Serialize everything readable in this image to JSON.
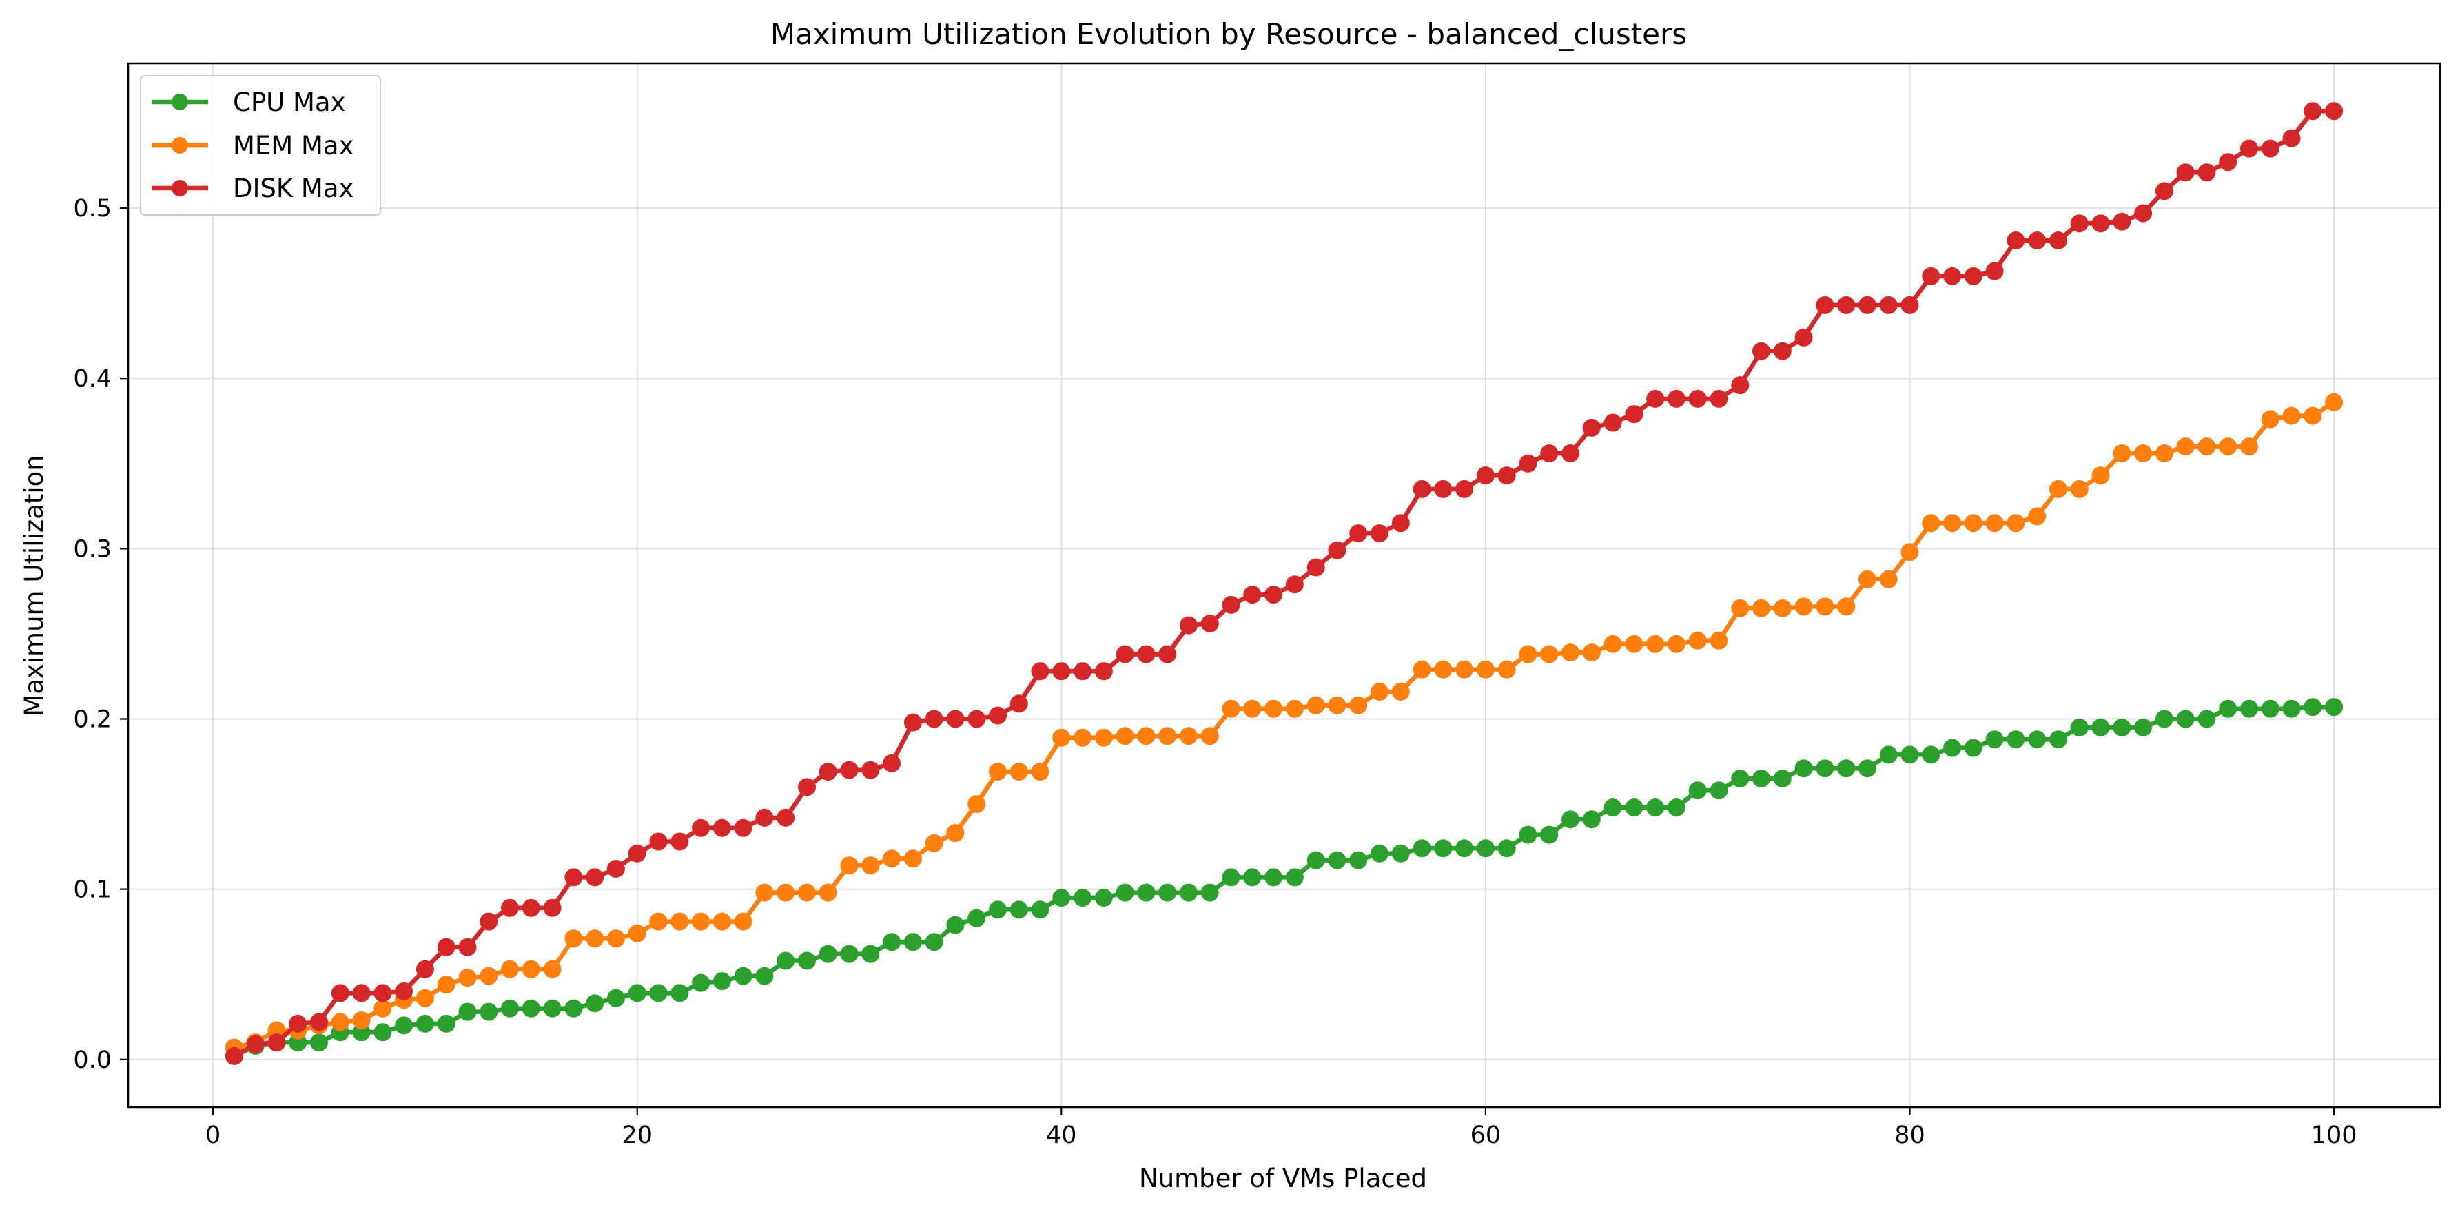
{
  "chart_data": {
    "type": "line",
    "title": "Maximum Utilization Evolution by Resource - balanced_clusters",
    "xlabel": "Number of VMs Placed",
    "ylabel": "Maximum Utilization",
    "xlim": [
      -4,
      105
    ],
    "ylim": [
      -0.028,
      0.585
    ],
    "xticks": [
      0,
      20,
      40,
      60,
      80,
      100
    ],
    "yticks": [
      0.0,
      0.1,
      0.2,
      0.3,
      0.4,
      0.5
    ],
    "xtick_labels": [
      "0",
      "20",
      "40",
      "60",
      "80",
      "100"
    ],
    "ytick_labels": [
      "0.0",
      "0.1",
      "0.2",
      "0.3",
      "0.4",
      "0.5"
    ],
    "grid": true,
    "legend_position": "top-left",
    "series": [
      {
        "name": "CPU Max",
        "color": "#2ca02c",
        "x": [
          1,
          2,
          3,
          4,
          5,
          6,
          7,
          8,
          9,
          10,
          11,
          12,
          13,
          14,
          15,
          16,
          17,
          18,
          19,
          20,
          21,
          22,
          23,
          24,
          25,
          26,
          27,
          28,
          29,
          30,
          31,
          32,
          33,
          34,
          35,
          36,
          37,
          38,
          39,
          40,
          41,
          42,
          43,
          44,
          45,
          46,
          47,
          48,
          49,
          50,
          51,
          52,
          53,
          54,
          55,
          56,
          57,
          58,
          59,
          60,
          61,
          62,
          63,
          64,
          65,
          66,
          67,
          68,
          69,
          70,
          71,
          72,
          73,
          74,
          75,
          76,
          77,
          78,
          79,
          80,
          81,
          82,
          83,
          84,
          85,
          86,
          87,
          88,
          89,
          90,
          91,
          92,
          93,
          94,
          95,
          96,
          97,
          98,
          99,
          100
        ],
        "values": [
          0.002,
          0.008,
          0.01,
          0.01,
          0.01,
          0.016,
          0.016,
          0.016,
          0.02,
          0.021,
          0.021,
          0.028,
          0.028,
          0.03,
          0.03,
          0.03,
          0.03,
          0.033,
          0.036,
          0.039,
          0.039,
          0.039,
          0.045,
          0.046,
          0.049,
          0.049,
          0.058,
          0.058,
          0.062,
          0.062,
          0.062,
          0.069,
          0.069,
          0.069,
          0.079,
          0.083,
          0.088,
          0.088,
          0.088,
          0.095,
          0.095,
          0.095,
          0.098,
          0.098,
          0.098,
          0.098,
          0.098,
          0.107,
          0.107,
          0.107,
          0.107,
          0.117,
          0.117,
          0.117,
          0.121,
          0.121,
          0.124,
          0.124,
          0.124,
          0.124,
          0.124,
          0.132,
          0.132,
          0.141,
          0.141,
          0.148,
          0.148,
          0.148,
          0.148,
          0.158,
          0.158,
          0.165,
          0.165,
          0.165,
          0.171,
          0.171,
          0.171,
          0.171,
          0.179,
          0.179,
          0.179,
          0.183,
          0.183,
          0.188,
          0.188,
          0.188,
          0.188,
          0.195,
          0.195,
          0.195,
          0.195,
          0.2,
          0.2,
          0.2,
          0.206,
          0.206,
          0.206,
          0.206,
          0.207,
          0.207
        ]
      },
      {
        "name": "MEM Max",
        "color": "#ff7f0e",
        "x": [
          1,
          2,
          3,
          4,
          5,
          6,
          7,
          8,
          9,
          10,
          11,
          12,
          13,
          14,
          15,
          16,
          17,
          18,
          19,
          20,
          21,
          22,
          23,
          24,
          25,
          26,
          27,
          28,
          29,
          30,
          31,
          32,
          33,
          34,
          35,
          36,
          37,
          38,
          39,
          40,
          41,
          42,
          43,
          44,
          45,
          46,
          47,
          48,
          49,
          50,
          51,
          52,
          53,
          54,
          55,
          56,
          57,
          58,
          59,
          60,
          61,
          62,
          63,
          64,
          65,
          66,
          67,
          68,
          69,
          70,
          71,
          72,
          73,
          74,
          75,
          76,
          77,
          78,
          79,
          80,
          81,
          82,
          83,
          84,
          85,
          86,
          87,
          88,
          89,
          90,
          91,
          92,
          93,
          94,
          95,
          96,
          97,
          98,
          99,
          100
        ],
        "values": [
          0.007,
          0.01,
          0.017,
          0.017,
          0.02,
          0.022,
          0.023,
          0.03,
          0.035,
          0.036,
          0.044,
          0.048,
          0.049,
          0.053,
          0.053,
          0.053,
          0.071,
          0.071,
          0.071,
          0.074,
          0.081,
          0.081,
          0.081,
          0.081,
          0.081,
          0.098,
          0.098,
          0.098,
          0.098,
          0.114,
          0.114,
          0.118,
          0.118,
          0.127,
          0.133,
          0.15,
          0.169,
          0.169,
          0.169,
          0.189,
          0.189,
          0.189,
          0.19,
          0.19,
          0.19,
          0.19,
          0.19,
          0.206,
          0.206,
          0.206,
          0.206,
          0.208,
          0.208,
          0.208,
          0.216,
          0.216,
          0.229,
          0.229,
          0.229,
          0.229,
          0.229,
          0.238,
          0.238,
          0.239,
          0.239,
          0.244,
          0.244,
          0.244,
          0.244,
          0.246,
          0.246,
          0.265,
          0.265,
          0.265,
          0.266,
          0.266,
          0.266,
          0.282,
          0.282,
          0.298,
          0.315,
          0.315,
          0.315,
          0.315,
          0.315,
          0.319,
          0.335,
          0.335,
          0.343,
          0.356,
          0.356,
          0.356,
          0.36,
          0.36,
          0.36,
          0.36,
          0.376,
          0.378,
          0.378,
          0.386
        ]
      },
      {
        "name": "DISK Max",
        "color": "#d62728",
        "x": [
          1,
          2,
          3,
          4,
          5,
          6,
          7,
          8,
          9,
          10,
          11,
          12,
          13,
          14,
          15,
          16,
          17,
          18,
          19,
          20,
          21,
          22,
          23,
          24,
          25,
          26,
          27,
          28,
          29,
          30,
          31,
          32,
          33,
          34,
          35,
          36,
          37,
          38,
          39,
          40,
          41,
          42,
          43,
          44,
          45,
          46,
          47,
          48,
          49,
          50,
          51,
          52,
          53,
          54,
          55,
          56,
          57,
          58,
          59,
          60,
          61,
          62,
          63,
          64,
          65,
          66,
          67,
          68,
          69,
          70,
          71,
          72,
          73,
          74,
          75,
          76,
          77,
          78,
          79,
          80,
          81,
          82,
          83,
          84,
          85,
          86,
          87,
          88,
          89,
          90,
          91,
          92,
          93,
          94,
          95,
          96,
          97,
          98,
          99,
          100
        ],
        "values": [
          0.002,
          0.009,
          0.01,
          0.021,
          0.022,
          0.039,
          0.039,
          0.039,
          0.04,
          0.053,
          0.066,
          0.066,
          0.081,
          0.089,
          0.089,
          0.089,
          0.107,
          0.107,
          0.112,
          0.121,
          0.128,
          0.128,
          0.136,
          0.136,
          0.136,
          0.142,
          0.142,
          0.16,
          0.169,
          0.17,
          0.17,
          0.174,
          0.198,
          0.2,
          0.2,
          0.2,
          0.202,
          0.209,
          0.228,
          0.228,
          0.228,
          0.228,
          0.238,
          0.238,
          0.238,
          0.255,
          0.256,
          0.267,
          0.273,
          0.273,
          0.279,
          0.289,
          0.299,
          0.309,
          0.309,
          0.315,
          0.335,
          0.335,
          0.335,
          0.343,
          0.343,
          0.35,
          0.356,
          0.356,
          0.371,
          0.374,
          0.379,
          0.388,
          0.388,
          0.388,
          0.388,
          0.396,
          0.416,
          0.416,
          0.424,
          0.443,
          0.443,
          0.443,
          0.443,
          0.443,
          0.46,
          0.46,
          0.46,
          0.463,
          0.481,
          0.481,
          0.481,
          0.491,
          0.491,
          0.492,
          0.497,
          0.51,
          0.521,
          0.521,
          0.527,
          0.535,
          0.535,
          0.541,
          0.557,
          0.557
        ]
      }
    ]
  }
}
